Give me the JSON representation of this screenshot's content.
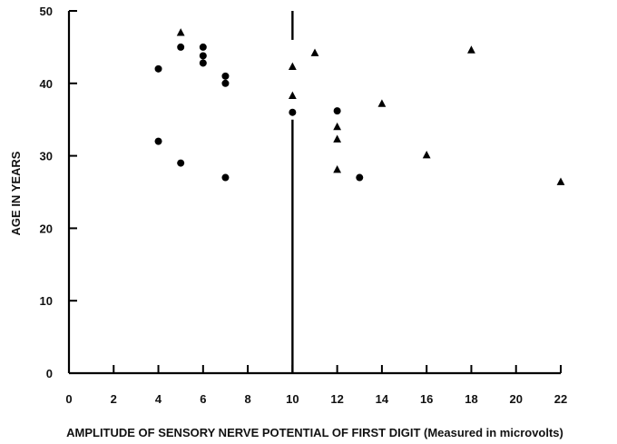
{
  "chart_data": {
    "type": "scatter",
    "title": "",
    "xlabel": "AMPLITUDE OF SENSORY NERVE POTENTIAL OF FIRST DIGIT (Measured in microvolts)",
    "ylabel": "AGE IN YEARS",
    "xlim": [
      0,
      22
    ],
    "ylim": [
      0,
      50
    ],
    "x_ticks": [
      0,
      2,
      4,
      6,
      8,
      10,
      12,
      14,
      16,
      18,
      20,
      22
    ],
    "y_ticks": [
      0,
      10,
      20,
      30,
      40,
      50
    ],
    "grid": false,
    "legend": "none",
    "reference_line": {
      "x": 10,
      "y_from": 0,
      "y_to": 50,
      "gap_y": [
        35,
        46
      ]
    },
    "series": [
      {
        "marker": "circle",
        "color": "#000000",
        "points": [
          {
            "x": 4,
            "y": 42
          },
          {
            "x": 4,
            "y": 32
          },
          {
            "x": 5,
            "y": 45
          },
          {
            "x": 5,
            "y": 29
          },
          {
            "x": 6,
            "y": 45
          },
          {
            "x": 6,
            "y": 43.8
          },
          {
            "x": 6,
            "y": 42.8
          },
          {
            "x": 7,
            "y": 41
          },
          {
            "x": 7,
            "y": 40
          },
          {
            "x": 7,
            "y": 27
          },
          {
            "x": 10,
            "y": 36
          },
          {
            "x": 12,
            "y": 36.2
          },
          {
            "x": 13,
            "y": 27
          }
        ]
      },
      {
        "marker": "triangle",
        "color": "#000000",
        "points": [
          {
            "x": 5,
            "y": 47
          },
          {
            "x": 10,
            "y": 42.3
          },
          {
            "x": 10,
            "y": 38.3
          },
          {
            "x": 11,
            "y": 44.2
          },
          {
            "x": 12,
            "y": 34
          },
          {
            "x": 12,
            "y": 32.3
          },
          {
            "x": 12,
            "y": 28.1
          },
          {
            "x": 14,
            "y": 37.2
          },
          {
            "x": 16,
            "y": 30.1
          },
          {
            "x": 18,
            "y": 44.6
          },
          {
            "x": 22,
            "y": 26.4
          }
        ]
      }
    ]
  }
}
